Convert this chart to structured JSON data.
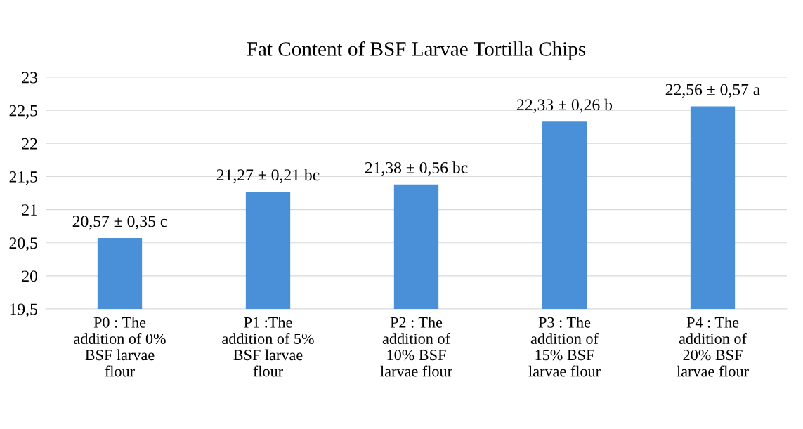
{
  "chart_data": {
    "type": "bar",
    "title": "Fat Content of BSF Larvae Tortilla Chips",
    "categories": [
      "P0 : The\naddition of 0%\nBSF larvae\nflour",
      "P1 :The\naddition of 5%\nBSF larvae\nflour",
      "P2 : The\naddition of\n10% BSF\nlarvae flour",
      "P3 : The\naddition of\n15% BSF\nlarvae flour",
      "P4 : The\naddition of\n20% BSF\nlarvae flour"
    ],
    "values": [
      20.57,
      21.27,
      21.38,
      22.33,
      22.56
    ],
    "value_labels": [
      "20,57 ± 0,35 c",
      "21,27 ± 0,21 bc",
      "21,38 ± 0,56 bc",
      "22,33 ± 0,26 b",
      "22,56 ± 0,57 a"
    ],
    "color": "#4a90d9",
    "ylim": [
      19.5,
      23
    ],
    "yticks": [
      {
        "value": 19.5,
        "label": "19,5"
      },
      20,
      {
        "value": 20.5,
        "label": "20,5"
      },
      21,
      {
        "value": 21.5,
        "label": "21,5"
      },
      22,
      {
        "value": 22.5,
        "label": "22,5"
      },
      23
    ],
    "grid": "y"
  }
}
